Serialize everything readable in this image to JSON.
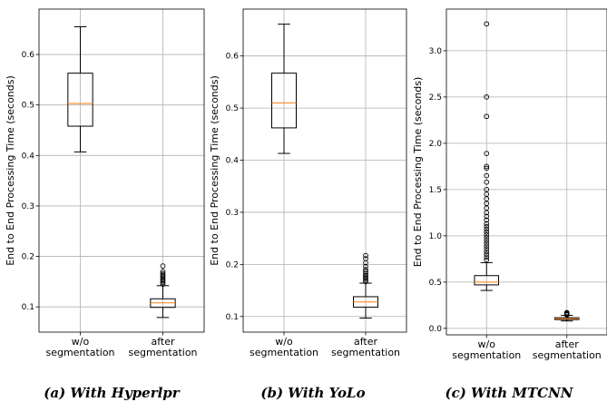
{
  "chart_data": [
    {
      "type": "boxplot",
      "caption": "(a) With Hyperlpr",
      "ylabel": "End to End Processing Time (seconds)",
      "ylim": [
        0.05,
        0.69
      ],
      "yticks": [
        0.1,
        0.2,
        0.3,
        0.4,
        0.5,
        0.6
      ],
      "ytick_labels": [
        "0.1",
        "0.2",
        "0.3",
        "0.4",
        "0.5",
        "0.6"
      ],
      "grid": true,
      "categories": [
        "w/o\nsegmentation",
        "after\nsegmentation"
      ],
      "boxes": [
        {
          "whisker_low": 0.407,
          "q1": 0.458,
          "median": 0.503,
          "q3": 0.563,
          "whisker_high": 0.655,
          "outliers": []
        },
        {
          "whisker_low": 0.079,
          "q1": 0.099,
          "median": 0.108,
          "q3": 0.116,
          "whisker_high": 0.142,
          "outliers": [
            0.145,
            0.148,
            0.151,
            0.154,
            0.157,
            0.16,
            0.163,
            0.166,
            0.17,
            0.181
          ]
        }
      ]
    },
    {
      "type": "boxplot",
      "caption": "(b) With YoLo",
      "ylabel": "End to End Processing Time (seconds)",
      "ylim": [
        0.07,
        0.69
      ],
      "yticks": [
        0.1,
        0.2,
        0.3,
        0.4,
        0.5,
        0.6
      ],
      "ytick_labels": [
        "0.1",
        "0.2",
        "0.3",
        "0.4",
        "0.5",
        "0.6"
      ],
      "grid": true,
      "categories": [
        "w/o\nsegmentation",
        "after\nsegmentation"
      ],
      "boxes": [
        {
          "whisker_low": 0.413,
          "q1": 0.462,
          "median": 0.51,
          "q3": 0.567,
          "whisker_high": 0.661,
          "outliers": []
        },
        {
          "whisker_low": 0.097,
          "q1": 0.118,
          "median": 0.128,
          "q3": 0.138,
          "whisker_high": 0.164,
          "outliers": [
            0.167,
            0.17,
            0.173,
            0.176,
            0.179,
            0.182,
            0.186,
            0.19,
            0.196,
            0.203,
            0.211,
            0.217
          ]
        }
      ]
    },
    {
      "type": "boxplot",
      "caption": "(c) With MTCNN",
      "ylabel": "End to End Processing Time (seconds)",
      "ylim": [
        -0.07,
        3.45
      ],
      "yticks": [
        0.0,
        0.5,
        1.0,
        1.5,
        2.0,
        2.5,
        3.0
      ],
      "ytick_labels": [
        "0.0",
        "0.5",
        "1.0",
        "1.5",
        "2.0",
        "2.5",
        "3.0"
      ],
      "grid": true,
      "categories": [
        "w/o\nsegmentation",
        "after\nsegmentation"
      ],
      "boxes": [
        {
          "whisker_low": 0.41,
          "q1": 0.47,
          "median": 0.5,
          "q3": 0.57,
          "whisker_high": 0.71,
          "outliers": [
            0.74,
            0.77,
            0.8,
            0.83,
            0.86,
            0.89,
            0.92,
            0.95,
            0.98,
            1.01,
            1.04,
            1.07,
            1.1,
            1.13,
            1.17,
            1.21,
            1.25,
            1.3,
            1.35,
            1.4,
            1.45,
            1.5,
            1.58,
            1.65,
            1.73,
            1.75,
            1.89,
            2.29,
            2.5,
            3.29
          ]
        },
        {
          "whisker_low": 0.08,
          "q1": 0.095,
          "median": 0.105,
          "q3": 0.115,
          "whisker_high": 0.14,
          "outliers": [
            0.145,
            0.15,
            0.155,
            0.16,
            0.165,
            0.17
          ]
        }
      ]
    }
  ]
}
